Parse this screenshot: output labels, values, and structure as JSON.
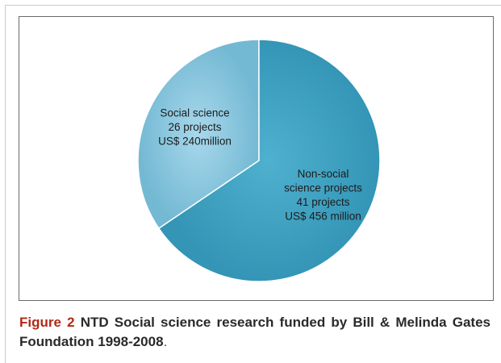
{
  "chart_data": {
    "type": "pie",
    "slices": [
      {
        "label_lines": [
          "Social science",
          "26 projects",
          "US$ 240million"
        ],
        "projects": 26,
        "funding_usd_million": 240,
        "color": "#85c6e0"
      },
      {
        "label_lines": [
          "Non-social",
          "science projects",
          "41 projects",
          "US$ 456 million"
        ],
        "projects": 41,
        "funding_usd_million": 456,
        "color": "#3d9fbf"
      }
    ],
    "value_field": "funding_usd_million",
    "start_angle_deg": 0,
    "legend": "none",
    "edge_color": "#ffffff"
  },
  "caption": {
    "label": "Figure 2",
    "text": "NTD Social science research funded by Bill & Melinda Gates Foundation 1998-2008",
    "period": "."
  },
  "colors": {
    "caption_label": "#b12a14",
    "chart_border": "#6a6a6a"
  }
}
